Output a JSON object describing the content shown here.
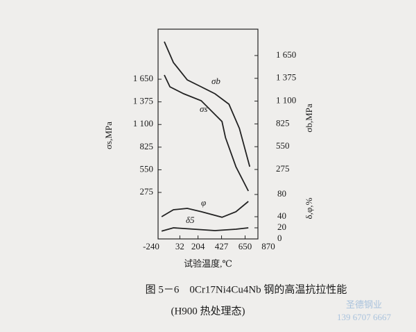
{
  "chart_data": {
    "type": "line",
    "xlabel": "试验温度,℃",
    "ylabel": "σs,MPa",
    "y2label": "σb,MPa",
    "y3label": "δ,φ,%",
    "caption": "图 5－6　0Cr17Ni4Cu4Nb 钢的高温抗拉性能",
    "subcaption": "(H900 热处理态)",
    "watermark": [
      "圣德钢业",
      "139 6707 6667"
    ],
    "xlim": [
      -240,
      870
    ],
    "xticks": [
      -240,
      32,
      204,
      427,
      650,
      870
    ],
    "ylim": [
      -290,
      2258
    ],
    "yticks": [
      275,
      550,
      825,
      {
        "value": 1100,
        "label": "1 100"
      },
      {
        "value": 1375,
        "label": "1 375"
      },
      {
        "value": 1650,
        "label": "1 650"
      }
    ],
    "y2lim": [
      -563,
      1968
    ],
    "y2ticks": [
      275,
      550,
      825,
      {
        "value": 1100,
        "label": "1 100"
      },
      {
        "value": 1375,
        "label": "1 375"
      },
      {
        "value": 1650,
        "label": "1 650"
      }
    ],
    "y3lim": [
      0,
      377.5
    ],
    "y3ticks": [
      0,
      20,
      40,
      80
    ],
    "series": [
      {
        "name": "σb",
        "color": "#222222",
        "axis": "y2",
        "x": [
          -115,
          -29,
          102,
          234,
          365,
          497,
          596,
          694
        ],
        "values": [
          1817,
          1566,
          1356,
          1272,
          1189,
          1063,
          770,
          309
        ]
      },
      {
        "name": "σs",
        "color": "#222222",
        "axis": "y",
        "x": [
          -115,
          -62,
          69,
          234,
          431,
          464,
          563,
          681
        ],
        "values": [
          1701,
          1558,
          1473,
          1389,
          1136,
          942,
          587,
          292
        ]
      },
      {
        "name": "φ",
        "color": "#222222",
        "axis": "y3",
        "x": [
          -141,
          -29,
          102,
          234,
          431,
          563,
          681
        ],
        "values": [
          40,
          52.5,
          55,
          49,
          39,
          49,
          67.5
        ]
      },
      {
        "name": "δ5",
        "color": "#222222",
        "axis": "y3",
        "x": [
          -141,
          -29,
          168,
          365,
          563,
          681
        ],
        "values": [
          14,
          20,
          17.5,
          15,
          17.5,
          20
        ]
      }
    ]
  }
}
